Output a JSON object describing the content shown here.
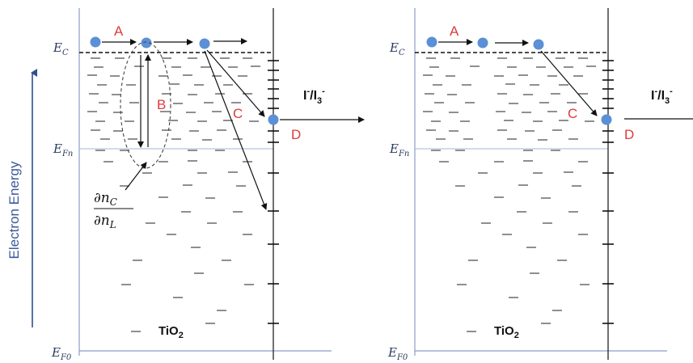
{
  "axis_title": "Electron Energy",
  "levels": {
    "ec": {
      "main": "E",
      "sub": "C"
    },
    "efn": {
      "main": "E",
      "sub": "Fn"
    },
    "ef0": {
      "main": "E",
      "sub": "F0"
    }
  },
  "process_labels": {
    "a": "A",
    "b": "B",
    "c": "C",
    "d": "D"
  },
  "material": {
    "main": "TiO",
    "sub": "2"
  },
  "redox": {
    "i1": "I",
    "sup1": "-",
    "slash": "/I",
    "sub3": "3",
    "sup2": "-"
  },
  "derivative": {
    "num": "∂n",
    "num_sub": "C",
    "den": "∂n",
    "den_sub": "L"
  },
  "colors": {
    "frame_line": "#8a9cc8",
    "electron": "#5b8fd6",
    "label_red": "#e03a3a",
    "arrow_blue": "#2f4f8f"
  }
}
